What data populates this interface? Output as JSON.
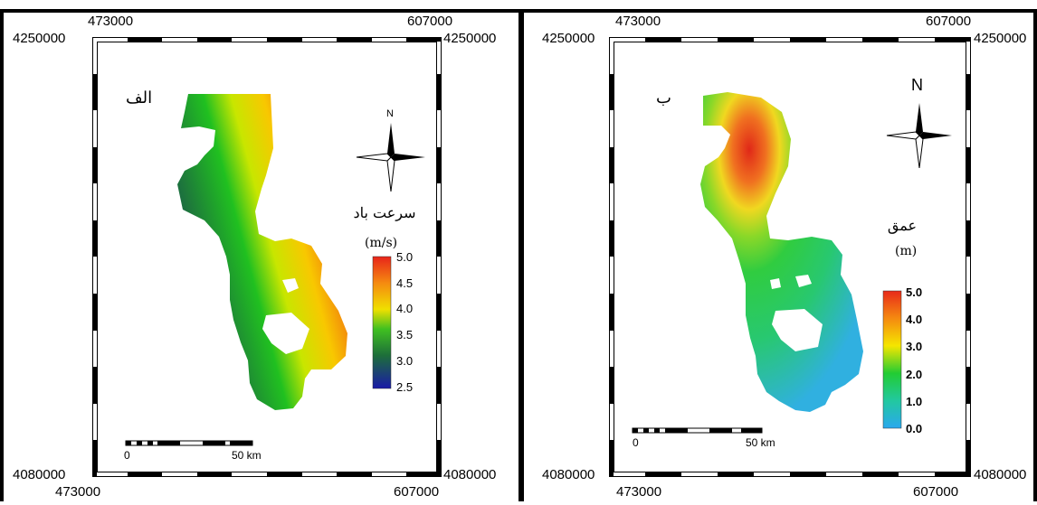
{
  "panel_a": {
    "coords": {
      "top_left": "473000",
      "top_right": "607000",
      "left_top": "4250000",
      "right_top": "4250000",
      "left_bottom": "4080000",
      "right_bottom": "4080000",
      "bottom_left": "473000",
      "bottom_right": "607000"
    },
    "label": "الف",
    "north": "N",
    "legend_title": "سرعت باد",
    "legend_unit": "(m/s)",
    "legend_ticks": [
      "5.0",
      "4.5",
      "4.0",
      "3.5",
      "3.0",
      "2.5"
    ],
    "scale_start": "0",
    "scale_end": "50 km",
    "colors": {
      "high": "#e8241a",
      "mid": "#f0e000",
      "low": "#1d6e3a",
      "min": "#1a1aa8"
    }
  },
  "panel_b": {
    "coords": {
      "top_left": "473000",
      "top_right": "607000",
      "left_top": "4250000",
      "right_top": "4250000",
      "left_bottom": "4080000",
      "right_bottom": "4080000",
      "bottom_left": "473000",
      "bottom_right": "607000"
    },
    "label": "ب",
    "north": "N",
    "legend_title": "عمق",
    "legend_unit": "(m)",
    "legend_ticks": [
      "5.0",
      "4.0",
      "3.0",
      "2.0",
      "1.0",
      "0.0"
    ],
    "scale_start": "0",
    "scale_end": "50 km",
    "colors": {
      "high": "#e82a1a",
      "mid": "#f5e600",
      "green": "#22cc33",
      "low": "#2aa8ee"
    }
  }
}
